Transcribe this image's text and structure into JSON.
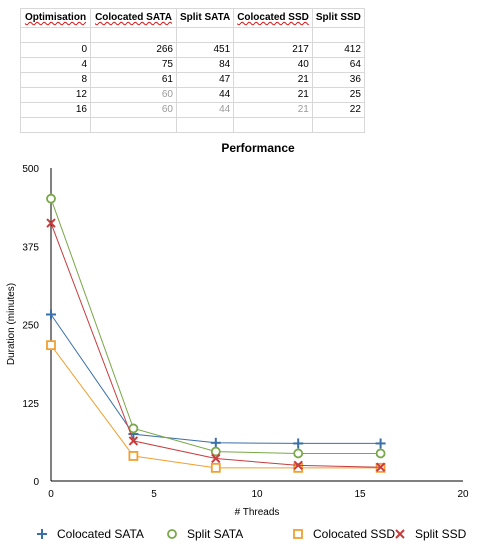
{
  "table": {
    "headers": [
      "Optimisation",
      "Colocated SATA",
      "Split SATA",
      "Colocated SSD",
      "Split SSD"
    ],
    "rows": [
      [
        "0",
        "266",
        "451",
        "217",
        "412"
      ],
      [
        "4",
        "75",
        "84",
        "40",
        "64"
      ],
      [
        "8",
        "61",
        "47",
        "21",
        "36"
      ],
      [
        "12",
        "60",
        "44",
        "21",
        "25"
      ],
      [
        "16",
        "60",
        "44",
        "21",
        "22"
      ]
    ]
  },
  "chart_data": {
    "type": "line",
    "title": "Performance",
    "xlabel": "# Threads",
    "ylabel": "Duration (minutes)",
    "x": [
      0,
      4,
      8,
      12,
      16
    ],
    "xlim": [
      0,
      20
    ],
    "ylim": [
      0,
      500
    ],
    "xticks": [
      "0",
      "5",
      "10",
      "15",
      "20"
    ],
    "yticks": [
      "0",
      "125",
      "250",
      "375",
      "500"
    ],
    "grid": false,
    "legend_position": "bottom",
    "series": [
      {
        "name": "Colocated SATA",
        "values": [
          266,
          75,
          61,
          60,
          60
        ],
        "color": "#3a6fa8",
        "marker": "plus"
      },
      {
        "name": "Split SATA",
        "values": [
          451,
          84,
          47,
          44,
          44
        ],
        "color": "#78a848",
        "marker": "circle"
      },
      {
        "name": "Colocated SSD",
        "values": [
          217,
          40,
          21,
          21,
          21
        ],
        "color": "#f0a030",
        "marker": "square"
      },
      {
        "name": "Split SSD",
        "values": [
          412,
          64,
          36,
          25,
          22
        ],
        "color": "#c83c3c",
        "marker": "x"
      }
    ]
  }
}
